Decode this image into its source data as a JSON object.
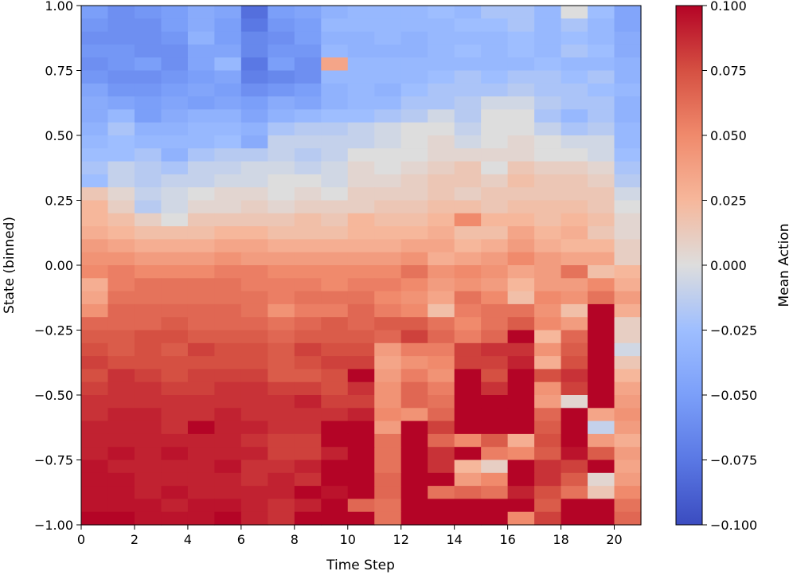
{
  "chart_data": {
    "type": "heatmap",
    "title": "",
    "xlabel": "Time Step",
    "ylabel": "State (binned)",
    "colorbar_label": "Mean Action",
    "colormap": "coolwarm",
    "x_range": [
      0,
      21
    ],
    "y_range": [
      -1.0,
      1.0
    ],
    "value_range": [
      -0.1,
      0.1
    ],
    "x_ticks": [
      0,
      2,
      4,
      6,
      8,
      10,
      12,
      14,
      16,
      18,
      20
    ],
    "y_ticks": [
      -1.0,
      -0.75,
      -0.5,
      -0.25,
      0.0,
      0.25,
      0.5,
      0.75,
      1.0
    ],
    "y_tick_labels": [
      "−1.00",
      "−0.75",
      "−0.50",
      "−0.25",
      "0.00",
      "0.25",
      "0.50",
      "0.75",
      "1.00"
    ],
    "colorbar_ticks": [
      -0.1,
      -0.075,
      -0.05,
      -0.025,
      0.0,
      0.025,
      0.05,
      0.075,
      0.1
    ],
    "colorbar_tick_labels": [
      "−0.100",
      "−0.075",
      "−0.050",
      "−0.025",
      "0.000",
      "0.025",
      "0.050",
      "0.075",
      "0.100"
    ],
    "x_bins": 21,
    "y_bins": 40,
    "values_note_rows": "row 0 = state bin at top (near 1.00), last row = bottom (near -1.00)",
    "values": [
      [
        -0.05,
        -0.06,
        -0.055,
        -0.05,
        -0.04,
        -0.045,
        -0.08,
        -0.05,
        -0.045,
        -0.035,
        -0.03,
        -0.03,
        -0.03,
        -0.025,
        -0.03,
        -0.02,
        -0.02,
        -0.03,
        0.0,
        -0.025,
        -0.045
      ],
      [
        -0.055,
        -0.06,
        -0.06,
        -0.05,
        -0.04,
        -0.05,
        -0.075,
        -0.055,
        -0.05,
        -0.03,
        -0.03,
        -0.03,
        -0.03,
        -0.03,
        -0.025,
        -0.025,
        -0.02,
        -0.03,
        -0.02,
        -0.03,
        -0.045
      ],
      [
        -0.06,
        -0.06,
        -0.06,
        -0.055,
        -0.035,
        -0.05,
        -0.065,
        -0.06,
        -0.05,
        -0.035,
        -0.035,
        -0.03,
        -0.035,
        -0.03,
        -0.03,
        -0.03,
        -0.025,
        -0.03,
        -0.025,
        -0.03,
        -0.04
      ],
      [
        -0.055,
        -0.055,
        -0.06,
        -0.06,
        -0.045,
        -0.045,
        -0.065,
        -0.055,
        -0.055,
        -0.03,
        -0.035,
        -0.035,
        -0.035,
        -0.03,
        -0.025,
        -0.03,
        -0.025,
        -0.03,
        -0.02,
        -0.025,
        -0.04
      ],
      [
        -0.06,
        -0.055,
        -0.05,
        -0.06,
        -0.045,
        -0.03,
        -0.075,
        -0.05,
        -0.06,
        0.035,
        -0.03,
        -0.03,
        -0.03,
        -0.03,
        -0.03,
        -0.03,
        -0.03,
        -0.025,
        -0.03,
        -0.03,
        -0.035
      ],
      [
        -0.055,
        -0.06,
        -0.06,
        -0.055,
        -0.05,
        -0.045,
        -0.07,
        -0.065,
        -0.06,
        -0.03,
        -0.03,
        -0.03,
        -0.03,
        -0.025,
        -0.02,
        -0.025,
        -0.02,
        -0.02,
        -0.025,
        -0.02,
        -0.035
      ],
      [
        -0.045,
        -0.055,
        -0.055,
        -0.05,
        -0.045,
        -0.05,
        -0.06,
        -0.055,
        -0.05,
        -0.035,
        -0.03,
        -0.035,
        -0.025,
        -0.02,
        -0.02,
        -0.02,
        -0.015,
        -0.02,
        -0.02,
        -0.025,
        -0.03
      ],
      [
        -0.04,
        -0.045,
        -0.05,
        -0.045,
        -0.05,
        -0.045,
        -0.05,
        -0.04,
        -0.045,
        -0.035,
        -0.03,
        -0.03,
        -0.02,
        -0.02,
        -0.015,
        -0.005,
        -0.005,
        -0.015,
        -0.02,
        -0.02,
        -0.035
      ],
      [
        -0.04,
        -0.03,
        -0.05,
        -0.04,
        -0.035,
        -0.035,
        -0.045,
        -0.035,
        -0.03,
        -0.025,
        -0.025,
        -0.02,
        -0.015,
        -0.005,
        -0.015,
        0.0,
        0.0,
        -0.02,
        -0.03,
        -0.02,
        -0.035
      ],
      [
        -0.035,
        -0.02,
        -0.035,
        -0.035,
        -0.03,
        -0.03,
        -0.035,
        -0.02,
        -0.015,
        -0.015,
        -0.01,
        -0.005,
        0.0,
        0.0,
        -0.01,
        0.0,
        0.0,
        -0.01,
        -0.02,
        -0.015,
        -0.03
      ],
      [
        -0.03,
        -0.025,
        -0.03,
        -0.03,
        -0.03,
        -0.025,
        -0.04,
        -0.01,
        -0.01,
        -0.01,
        -0.01,
        -0.005,
        0.0,
        0.005,
        -0.005,
        0.0,
        0.005,
        0.0,
        -0.005,
        -0.005,
        -0.03
      ],
      [
        -0.025,
        -0.025,
        -0.02,
        -0.035,
        -0.02,
        -0.015,
        -0.015,
        -0.01,
        -0.015,
        -0.01,
        0.0,
        0.0,
        0.0,
        0.005,
        0.005,
        0.005,
        0.005,
        0.0,
        0.0,
        -0.005,
        -0.025
      ],
      [
        -0.02,
        -0.01,
        -0.015,
        -0.02,
        -0.01,
        -0.01,
        -0.005,
        -0.005,
        -0.01,
        -0.005,
        0.005,
        0.0,
        0.005,
        0.01,
        0.015,
        0.0,
        0.015,
        0.01,
        0.01,
        0.005,
        -0.02
      ],
      [
        -0.025,
        -0.01,
        -0.015,
        -0.01,
        -0.01,
        -0.005,
        -0.005,
        0.0,
        0.0,
        -0.005,
        0.005,
        0.005,
        0.01,
        0.015,
        0.015,
        0.01,
        0.02,
        0.015,
        0.015,
        0.01,
        -0.015
      ],
      [
        0.015,
        0.005,
        -0.01,
        -0.005,
        0.0,
        0.005,
        0.005,
        0.0,
        0.005,
        0.0,
        0.01,
        0.01,
        0.01,
        0.015,
        0.01,
        0.015,
        0.015,
        0.015,
        0.015,
        0.015,
        -0.005
      ],
      [
        0.025,
        0.01,
        -0.015,
        -0.005,
        0.005,
        0.005,
        0.01,
        0.005,
        0.01,
        0.01,
        0.01,
        0.015,
        0.015,
        0.02,
        0.02,
        0.015,
        0.02,
        0.02,
        0.02,
        0.015,
        0.0
      ],
      [
        0.025,
        0.02,
        0.01,
        0.0,
        0.015,
        0.015,
        0.015,
        0.015,
        0.02,
        0.015,
        0.025,
        0.02,
        0.02,
        0.025,
        0.05,
        0.025,
        0.025,
        0.02,
        0.025,
        0.02,
        0.005
      ],
      [
        0.03,
        0.025,
        0.02,
        0.02,
        0.02,
        0.025,
        0.025,
        0.02,
        0.02,
        0.02,
        0.025,
        0.025,
        0.025,
        0.03,
        0.02,
        0.02,
        0.035,
        0.025,
        0.03,
        0.015,
        0.005
      ],
      [
        0.04,
        0.035,
        0.03,
        0.03,
        0.03,
        0.035,
        0.035,
        0.03,
        0.03,
        0.03,
        0.03,
        0.03,
        0.035,
        0.035,
        0.025,
        0.03,
        0.04,
        0.03,
        0.025,
        0.025,
        0.01
      ],
      [
        0.045,
        0.045,
        0.04,
        0.04,
        0.04,
        0.045,
        0.04,
        0.04,
        0.04,
        0.04,
        0.04,
        0.04,
        0.045,
        0.03,
        0.035,
        0.04,
        0.05,
        0.04,
        0.035,
        0.035,
        0.01
      ],
      [
        0.05,
        0.055,
        0.05,
        0.05,
        0.05,
        0.055,
        0.055,
        0.05,
        0.05,
        0.05,
        0.05,
        0.05,
        0.06,
        0.045,
        0.05,
        0.045,
        0.035,
        0.04,
        0.06,
        0.02,
        0.025
      ],
      [
        0.03,
        0.055,
        0.06,
        0.06,
        0.06,
        0.06,
        0.055,
        0.055,
        0.055,
        0.05,
        0.055,
        0.055,
        0.05,
        0.04,
        0.045,
        0.04,
        0.025,
        0.04,
        0.04,
        0.05,
        0.03
      ],
      [
        0.035,
        0.06,
        0.06,
        0.06,
        0.06,
        0.06,
        0.06,
        0.055,
        0.06,
        0.06,
        0.06,
        0.05,
        0.045,
        0.035,
        0.06,
        0.05,
        0.02,
        0.05,
        0.045,
        0.06,
        0.04
      ],
      [
        0.045,
        0.065,
        0.065,
        0.065,
        0.065,
        0.065,
        0.06,
        0.045,
        0.055,
        0.055,
        0.065,
        0.055,
        0.05,
        0.02,
        0.055,
        0.06,
        0.06,
        0.045,
        0.02,
        0.1,
        0.03
      ],
      [
        0.065,
        0.065,
        0.065,
        0.07,
        0.065,
        0.065,
        0.065,
        0.06,
        0.065,
        0.07,
        0.065,
        0.07,
        0.07,
        0.06,
        0.05,
        0.06,
        0.07,
        0.05,
        0.04,
        0.1,
        0.01
      ],
      [
        0.07,
        0.07,
        0.075,
        0.075,
        0.07,
        0.07,
        0.07,
        0.065,
        0.07,
        0.07,
        0.07,
        0.065,
        0.08,
        0.065,
        0.055,
        0.065,
        0.1,
        0.025,
        0.065,
        0.1,
        0.01
      ],
      [
        0.075,
        0.07,
        0.075,
        0.07,
        0.08,
        0.075,
        0.075,
        0.07,
        0.08,
        0.075,
        0.075,
        0.04,
        0.055,
        0.055,
        0.08,
        0.085,
        0.085,
        0.045,
        0.07,
        0.1,
        -0.005
      ],
      [
        0.08,
        0.075,
        0.075,
        0.075,
        0.075,
        0.075,
        0.075,
        0.07,
        0.075,
        0.08,
        0.08,
        0.035,
        0.045,
        0.05,
        0.08,
        0.08,
        0.09,
        0.03,
        0.075,
        0.1,
        0.015
      ],
      [
        0.075,
        0.085,
        0.08,
        0.075,
        0.08,
        0.08,
        0.08,
        0.07,
        0.07,
        0.075,
        0.1,
        0.04,
        0.055,
        0.045,
        0.1,
        0.075,
        0.1,
        0.075,
        0.085,
        0.1,
        0.025
      ],
      [
        0.08,
        0.085,
        0.085,
        0.08,
        0.08,
        0.085,
        0.085,
        0.08,
        0.08,
        0.075,
        0.085,
        0.045,
        0.065,
        0.055,
        0.1,
        0.085,
        0.1,
        0.045,
        0.08,
        0.1,
        0.035
      ],
      [
        0.085,
        0.085,
        0.085,
        0.085,
        0.085,
        0.085,
        0.085,
        0.085,
        0.09,
        0.08,
        0.08,
        0.045,
        0.065,
        0.06,
        0.1,
        0.1,
        0.1,
        0.04,
        0.005,
        0.1,
        0.04
      ],
      [
        0.085,
        0.09,
        0.09,
        0.085,
        0.085,
        0.09,
        0.085,
        0.085,
        0.085,
        0.085,
        0.09,
        0.05,
        0.045,
        0.065,
        0.1,
        0.1,
        0.1,
        0.065,
        0.1,
        0.035,
        0.045
      ],
      [
        0.09,
        0.09,
        0.09,
        0.085,
        0.1,
        0.09,
        0.09,
        0.085,
        0.085,
        0.1,
        0.1,
        0.04,
        0.1,
        0.08,
        0.1,
        0.1,
        0.1,
        0.07,
        0.1,
        -0.01,
        0.04
      ],
      [
        0.09,
        0.09,
        0.09,
        0.09,
        0.09,
        0.09,
        0.085,
        0.08,
        0.08,
        0.1,
        0.1,
        0.06,
        0.1,
        0.065,
        0.05,
        0.07,
        0.03,
        0.075,
        0.1,
        0.04,
        0.03
      ],
      [
        0.09,
        0.095,
        0.09,
        0.095,
        0.09,
        0.09,
        0.09,
        0.08,
        0.08,
        0.09,
        0.1,
        0.06,
        0.1,
        0.085,
        0.1,
        0.055,
        0.05,
        0.07,
        0.095,
        0.07,
        0.04
      ],
      [
        0.095,
        0.09,
        0.09,
        0.09,
        0.09,
        0.095,
        0.085,
        0.085,
        0.09,
        0.1,
        0.1,
        0.06,
        0.1,
        0.085,
        0.025,
        0.01,
        0.1,
        0.085,
        0.08,
        0.1,
        0.035
      ],
      [
        0.095,
        0.095,
        0.09,
        0.09,
        0.09,
        0.09,
        0.085,
        0.09,
        0.085,
        0.1,
        0.1,
        0.065,
        0.1,
        0.1,
        0.04,
        0.05,
        0.1,
        0.085,
        0.07,
        0.005,
        0.04
      ],
      [
        0.095,
        0.095,
        0.09,
        0.095,
        0.09,
        0.09,
        0.09,
        0.09,
        0.1,
        0.095,
        0.1,
        0.065,
        0.1,
        0.06,
        0.065,
        0.06,
        0.09,
        0.075,
        0.06,
        0.015,
        0.05
      ],
      [
        0.095,
        0.095,
        0.095,
        0.09,
        0.095,
        0.095,
        0.09,
        0.085,
        0.09,
        0.1,
        0.065,
        0.06,
        0.1,
        0.1,
        0.1,
        0.1,
        0.1,
        0.07,
        0.1,
        0.1,
        0.06
      ],
      [
        0.1,
        0.1,
        0.095,
        0.095,
        0.095,
        0.1,
        0.09,
        0.085,
        0.1,
        0.1,
        0.1,
        0.06,
        0.1,
        0.1,
        0.1,
        0.1,
        0.05,
        0.08,
        0.1,
        0.1,
        0.065
      ]
    ]
  }
}
